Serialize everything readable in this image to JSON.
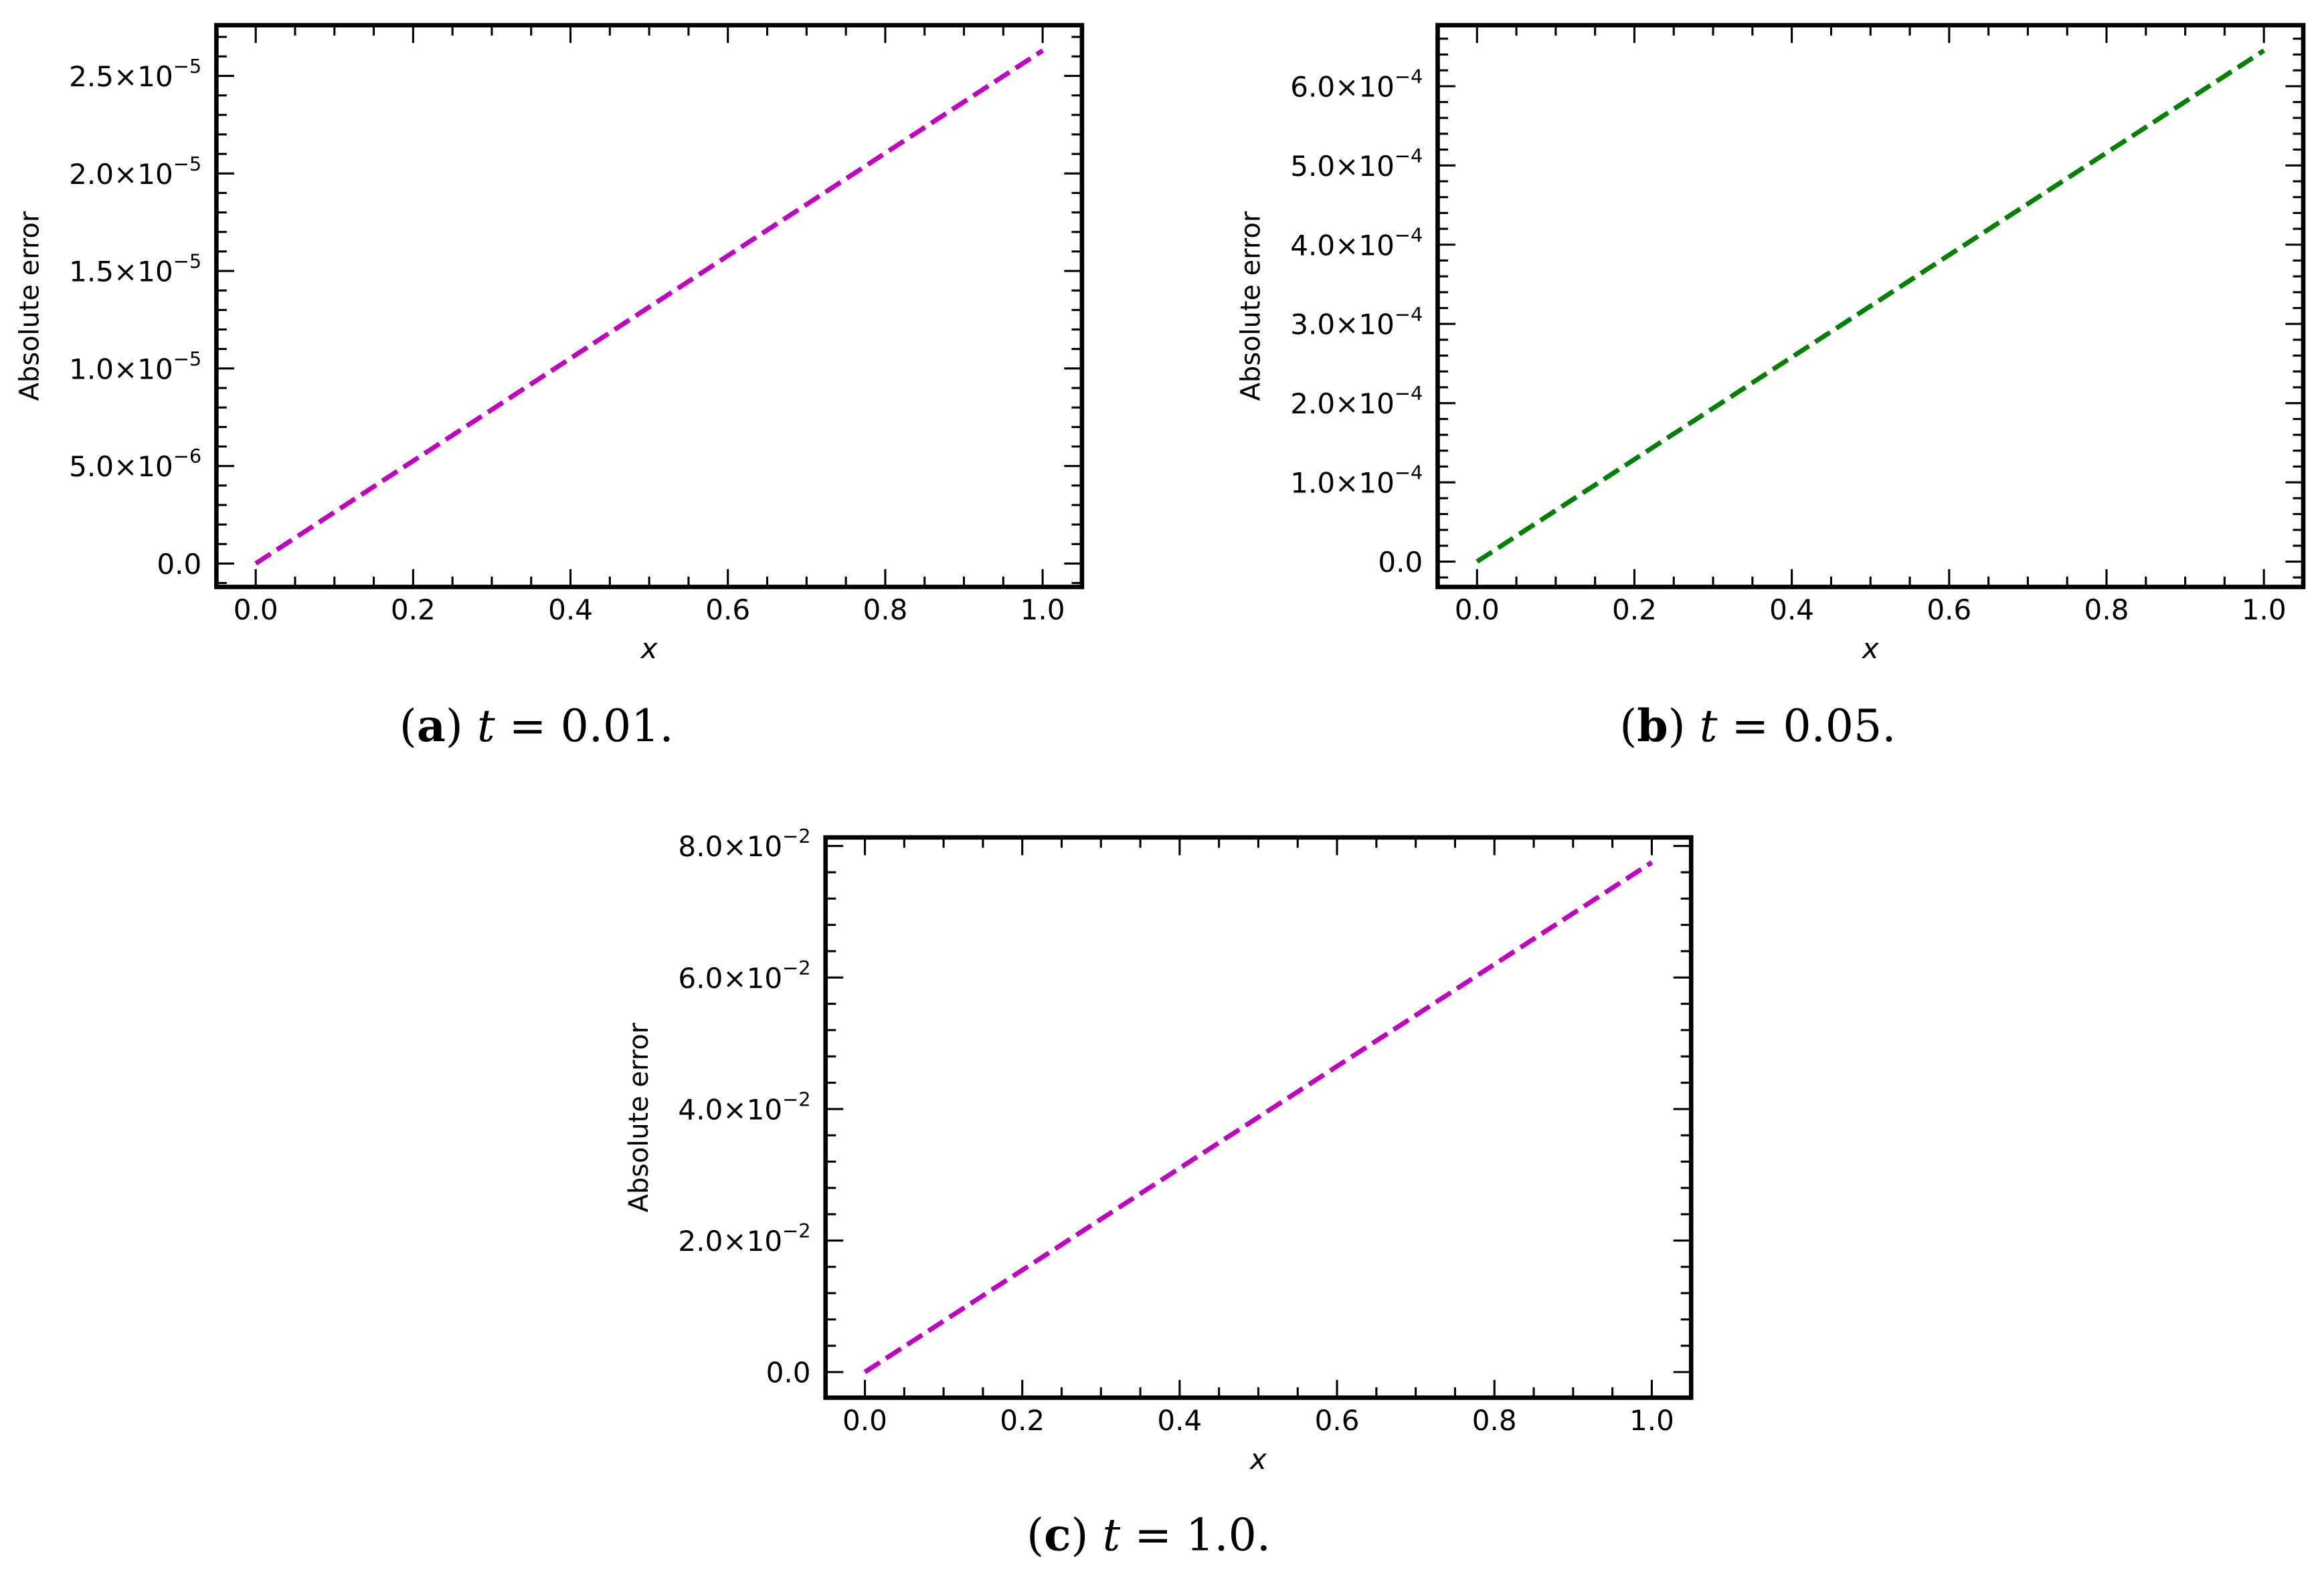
{
  "figure": {
    "panels": [
      {
        "id": "a",
        "caption_label": "a",
        "caption_var": "t",
        "caption_eq": " = 0.01.",
        "line_color": "#bf00bf",
        "ylabel": "Absolute error",
        "xlabel": "x",
        "yticks": [
          {
            "value": 0,
            "label": "0.0"
          },
          {
            "value": 5e-06,
            "label": "5.0×10",
            "exp": "−6"
          },
          {
            "value": 1e-05,
            "label": "1.0×10",
            "exp": "−5"
          },
          {
            "value": 1.5e-05,
            "label": "1.5×10",
            "exp": "−5"
          },
          {
            "value": 2e-05,
            "label": "2.0×10",
            "exp": "−5"
          },
          {
            "value": 2.5e-05,
            "label": "2.5×10",
            "exp": "−5"
          }
        ],
        "xticks": [
          "0.0",
          "0.2",
          "0.4",
          "0.6",
          "0.8",
          "1.0"
        ]
      },
      {
        "id": "b",
        "caption_label": "b",
        "caption_var": "t",
        "caption_eq": " = 0.05.",
        "line_color": "#008000",
        "ylabel": "Absolute error",
        "xlabel": "x",
        "yticks": [
          {
            "value": 0,
            "label": "0.0"
          },
          {
            "value": 0.0001,
            "label": "1.0×10",
            "exp": "−4"
          },
          {
            "value": 0.0002,
            "label": "2.0×10",
            "exp": "−4"
          },
          {
            "value": 0.0003,
            "label": "3.0×10",
            "exp": "−4"
          },
          {
            "value": 0.0004,
            "label": "4.0×10",
            "exp": "−4"
          },
          {
            "value": 0.0005,
            "label": "5.0×10",
            "exp": "−4"
          },
          {
            "value": 0.0006,
            "label": "6.0×10",
            "exp": "−4"
          }
        ],
        "xticks": [
          "0.0",
          "0.2",
          "0.4",
          "0.6",
          "0.8",
          "1.0"
        ]
      },
      {
        "id": "c",
        "caption_label": "c",
        "caption_var": "t",
        "caption_eq": " = 1.0.",
        "line_color": "#bf00bf",
        "ylabel": "Absolute error",
        "xlabel": "x",
        "yticks": [
          {
            "value": 0,
            "label": "0.0"
          },
          {
            "value": 0.02,
            "label": "2.0×10",
            "exp": "−2"
          },
          {
            "value": 0.04,
            "label": "4.0×10",
            "exp": "−2"
          },
          {
            "value": 0.06,
            "label": "6.0×10",
            "exp": "−2"
          },
          {
            "value": 0.08,
            "label": "8.0×10",
            "exp": "−2"
          }
        ],
        "xticks": [
          "0.0",
          "0.2",
          "0.4",
          "0.6",
          "0.8",
          "1.0"
        ]
      }
    ]
  },
  "chart_data": [
    {
      "type": "line",
      "title": "(a) t = 0.01.",
      "xlabel": "x",
      "ylabel": "Absolute error",
      "x": [
        0.0,
        0.2,
        0.4,
        0.6,
        0.8,
        1.0
      ],
      "series": [
        {
          "name": "Absolute error",
          "color": "#bf00bf",
          "linestyle": "dashed",
          "values": [
            0.0,
            5.26e-06,
            1.052e-05,
            1.578e-05,
            2.104e-05,
            2.63e-05
          ]
        }
      ],
      "xlim": [
        -0.05,
        1.05
      ],
      "ylim": [
        -1.2e-06,
        2.76e-05
      ],
      "xticks": [
        0.0,
        0.2,
        0.4,
        0.6,
        0.8,
        1.0
      ],
      "yticks": [
        0,
        5e-06,
        1e-05,
        1.5e-05,
        2e-05,
        2.5e-05
      ],
      "grid": false,
      "legend": null
    },
    {
      "type": "line",
      "title": "(b) t = 0.05.",
      "xlabel": "x",
      "ylabel": "Absolute error",
      "x": [
        0.0,
        0.2,
        0.4,
        0.6,
        0.8,
        1.0
      ],
      "series": [
        {
          "name": "Absolute error",
          "color": "#008000",
          "linestyle": "dashed",
          "values": [
            0.0,
            0.000129,
            0.000258,
            0.000387,
            0.000516,
            0.000645
          ]
        }
      ],
      "xlim": [
        -0.05,
        1.05
      ],
      "ylim": [
        -3.2e-05,
        0.000677
      ],
      "xticks": [
        0.0,
        0.2,
        0.4,
        0.6,
        0.8,
        1.0
      ],
      "yticks": [
        0,
        0.0001,
        0.0002,
        0.0003,
        0.0004,
        0.0005,
        0.0006
      ],
      "grid": false,
      "legend": null
    },
    {
      "type": "line",
      "title": "(c) t = 1.0.",
      "xlabel": "x",
      "ylabel": "Absolute error",
      "x": [
        0.0,
        0.2,
        0.4,
        0.6,
        0.8,
        1.0
      ],
      "series": [
        {
          "name": "Absolute error",
          "color": "#bf00bf",
          "linestyle": "dashed",
          "values": [
            0.0,
            0.0155,
            0.031,
            0.0465,
            0.062,
            0.0775
          ]
        }
      ],
      "xlim": [
        -0.05,
        1.05
      ],
      "ylim": [
        -0.0039,
        0.0813
      ],
      "xticks": [
        0.0,
        0.2,
        0.4,
        0.6,
        0.8,
        1.0
      ],
      "yticks": [
        0,
        0.02,
        0.04,
        0.06,
        0.08
      ],
      "grid": false,
      "legend": null
    }
  ]
}
